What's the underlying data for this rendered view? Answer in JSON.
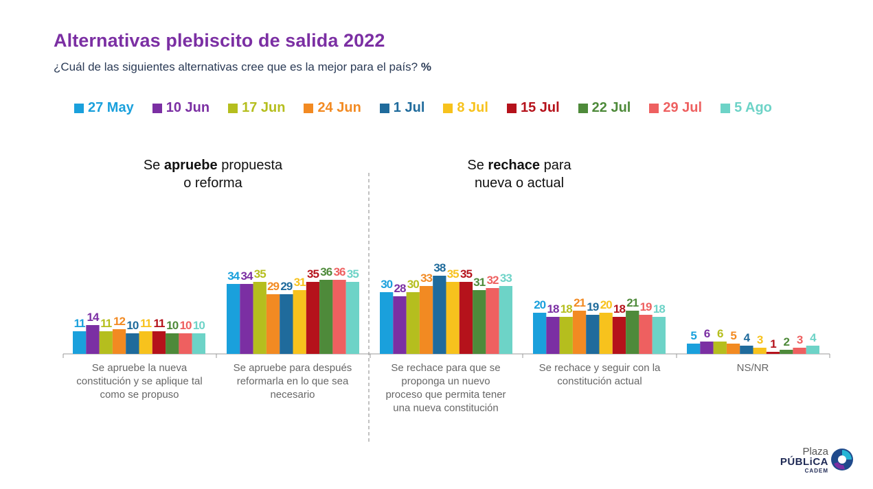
{
  "title": "Alternativas plebiscito de salida 2022",
  "subtitle_text": "¿Cuál de las siguientes alternativas cree que es la mejor para el país?",
  "subtitle_unit": "%",
  "group_labels": {
    "left_pre": "Se ",
    "left_bold": "apruebe",
    "left_post": " propuesta",
    "left_line2": "o reforma",
    "right_pre": "Se ",
    "right_bold": "rechace",
    "right_post": " para",
    "right_line2": "nueva o actual"
  },
  "logo": {
    "plaza": "Plaza",
    "publica": "PÚBLiCA",
    "cadem": "CADEM"
  },
  "colors": {
    "27 May": "#1aa0dc",
    "10 Jun": "#7b2fa3",
    "17 Jun": "#b5be1e",
    "24 Jun": "#f28a22",
    "1 Jul": "#1f6b9c",
    "8 Jul": "#f7c21d",
    "15 Jul": "#b5121b",
    "22 Jul": "#4e8a3a",
    "29 Jul": "#ee6060",
    "5 Ago": "#6dd3c7"
  },
  "chart_data": {
    "type": "bar",
    "categories": [
      "Se apruebe la nueva constitución y se aplique tal como se propuso",
      "Se apruebe para después reformarla en lo que sea necesario",
      "Se rechace para que se proponga un nuevo proceso que permita tener una nueva constitución",
      "Se rechace y seguir con la constitución actual",
      "NS/NR"
    ],
    "category_lines": [
      [
        "Se apruebe la nueva",
        "constitución y se aplique tal",
        "como se propuso"
      ],
      [
        "Se apruebe para después",
        "reformarla en lo que sea",
        "necesario"
      ],
      [
        "Se rechace para que se",
        "proponga un nuevo",
        "proceso que permita tener",
        "una nueva constitución"
      ],
      [
        "Se rechace y seguir con la",
        "constitución actual"
      ],
      [
        "NS/NR"
      ]
    ],
    "series": [
      {
        "name": "27 May",
        "values": [
          11,
          34,
          30,
          20,
          5
        ]
      },
      {
        "name": "10 Jun",
        "values": [
          14,
          34,
          28,
          18,
          6
        ]
      },
      {
        "name": "17 Jun",
        "values": [
          11,
          35,
          30,
          18,
          6
        ]
      },
      {
        "name": "24 Jun",
        "values": [
          12,
          29,
          33,
          21,
          5
        ]
      },
      {
        "name": "1 Jul",
        "values": [
          10,
          29,
          38,
          19,
          4
        ]
      },
      {
        "name": "8 Jul",
        "values": [
          11,
          31,
          35,
          20,
          3
        ]
      },
      {
        "name": "15 Jul",
        "values": [
          11,
          35,
          35,
          18,
          1
        ]
      },
      {
        "name": "22 Jul",
        "values": [
          10,
          36,
          31,
          21,
          2
        ]
      },
      {
        "name": "29 Jul",
        "values": [
          10,
          36,
          32,
          19,
          3
        ]
      },
      {
        "name": "5 Ago",
        "values": [
          10,
          35,
          33,
          18,
          4
        ]
      }
    ],
    "ylim": [
      0,
      40
    ],
    "grid": false,
    "legend_position": "top"
  }
}
